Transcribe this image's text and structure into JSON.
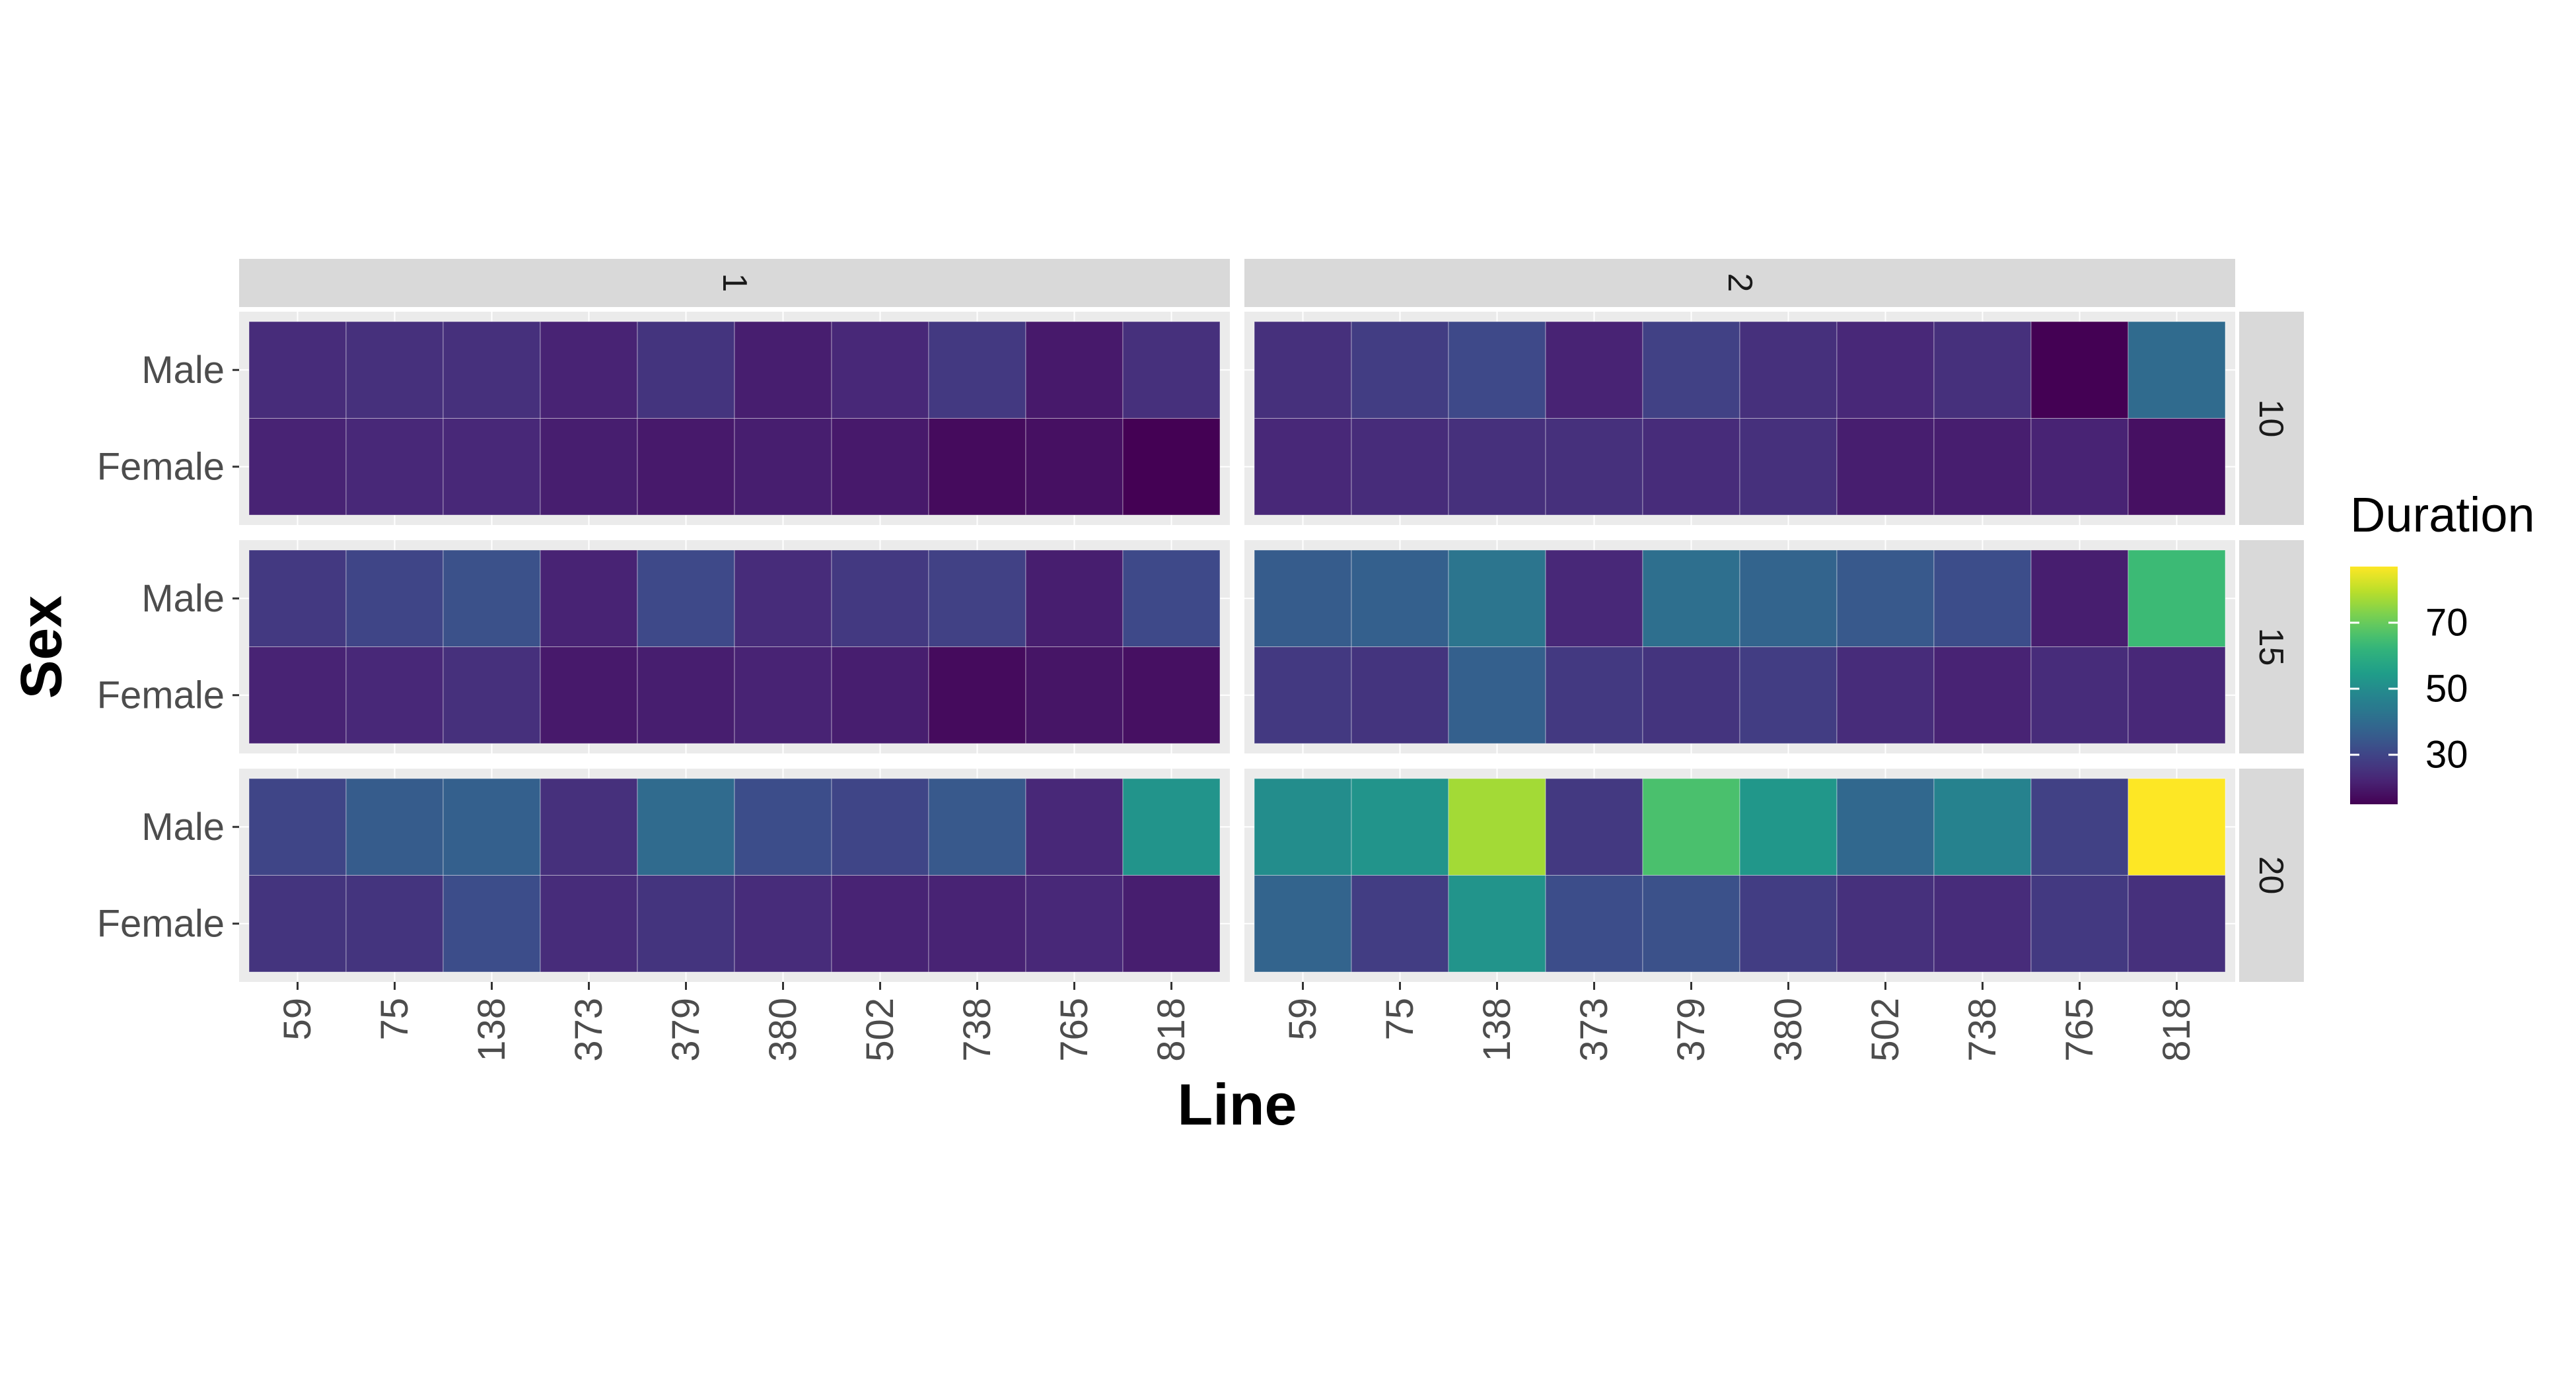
{
  "chart_data": {
    "type": "heatmap",
    "xlabel": "Line",
    "ylabel": "Sex",
    "categories": [
      "59",
      "75",
      "138",
      "373",
      "379",
      "380",
      "502",
      "738",
      "765",
      "818"
    ],
    "rows": [
      "Male",
      "Female"
    ],
    "column_facets": [
      "1",
      "2"
    ],
    "row_facets": [
      "10",
      "15",
      "20"
    ],
    "legend": {
      "title": "Duration",
      "ticks": [
        30,
        50,
        70
      ],
      "range": [
        15,
        87
      ],
      "placement": "right",
      "palette": "viridis"
    },
    "panels": [
      {
        "col_facet": "1",
        "row_facet": "10",
        "Male": [
          24,
          25,
          25,
          22,
          26,
          21,
          23,
          27,
          20,
          25
        ],
        "Female": [
          22,
          23,
          23,
          21,
          20,
          21,
          20,
          17,
          18,
          15
        ]
      },
      {
        "col_facet": "2",
        "row_facet": "10",
        "Male": [
          25,
          28,
          31,
          22,
          29,
          25,
          23,
          25,
          15,
          40
        ],
        "Female": [
          23,
          24,
          25,
          25,
          24,
          25,
          21,
          21,
          22,
          18
        ]
      },
      {
        "col_facet": "1",
        "row_facet": "15",
        "Male": [
          27,
          30,
          33,
          22,
          31,
          24,
          27,
          29,
          21,
          31
        ],
        "Female": [
          22,
          23,
          25,
          20,
          21,
          22,
          21,
          17,
          19,
          18
        ]
      },
      {
        "col_facet": "2",
        "row_facet": "15",
        "Male": [
          36,
          37,
          43,
          23,
          41,
          38,
          35,
          32,
          21,
          64
        ],
        "Female": [
          27,
          26,
          37,
          27,
          26,
          28,
          24,
          22,
          24,
          23
        ]
      },
      {
        "col_facet": "1",
        "row_facet": "20",
        "Male": [
          30,
          36,
          37,
          25,
          40,
          32,
          30,
          35,
          23,
          52
        ],
        "Female": [
          26,
          26,
          32,
          24,
          26,
          24,
          22,
          22,
          23,
          21
        ]
      },
      {
        "col_facet": "2",
        "row_facet": "20",
        "Male": [
          50,
          52,
          77,
          27,
          66,
          53,
          39,
          47,
          29,
          87
        ],
        "Female": [
          38,
          28,
          52,
          32,
          33,
          28,
          25,
          24,
          27,
          25
        ]
      }
    ]
  }
}
